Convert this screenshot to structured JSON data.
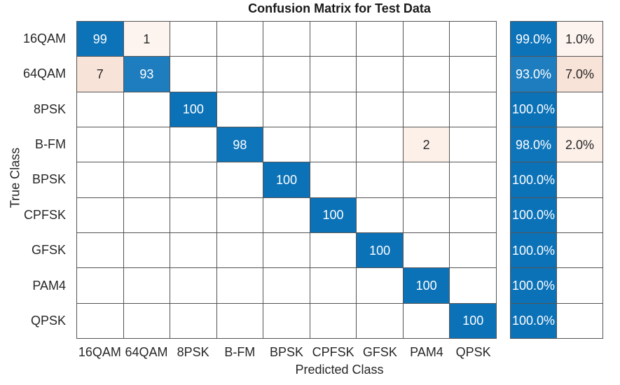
{
  "chart_data": {
    "type": "heatmap",
    "subtype": "confusion-matrix",
    "title": "Confusion Matrix for Test Data",
    "xlabel": "Predicted Class",
    "ylabel": "True Class",
    "classes": [
      "16QAM",
      "64QAM",
      "8PSK",
      "B-FM",
      "BPSK",
      "CPFSK",
      "GFSK",
      "PAM4",
      "QPSK"
    ],
    "matrix": [
      [
        99,
        1,
        0,
        0,
        0,
        0,
        0,
        0,
        0
      ],
      [
        7,
        93,
        0,
        0,
        0,
        0,
        0,
        0,
        0
      ],
      [
        0,
        0,
        100,
        0,
        0,
        0,
        0,
        0,
        0
      ],
      [
        0,
        0,
        0,
        98,
        0,
        0,
        0,
        2,
        0
      ],
      [
        0,
        0,
        0,
        0,
        100,
        0,
        0,
        0,
        0
      ],
      [
        0,
        0,
        0,
        0,
        0,
        100,
        0,
        0,
        0
      ],
      [
        0,
        0,
        0,
        0,
        0,
        0,
        100,
        0,
        0
      ],
      [
        0,
        0,
        0,
        0,
        0,
        0,
        0,
        100,
        0
      ],
      [
        0,
        0,
        0,
        0,
        0,
        0,
        0,
        0,
        100
      ]
    ],
    "row_summary": [
      {
        "correct": "99.0%",
        "incorrect": "1.0%"
      },
      {
        "correct": "93.0%",
        "incorrect": "7.0%"
      },
      {
        "correct": "100.0%",
        "incorrect": ""
      },
      {
        "correct": "98.0%",
        "incorrect": "2.0%"
      },
      {
        "correct": "100.0%",
        "incorrect": ""
      },
      {
        "correct": "100.0%",
        "incorrect": ""
      },
      {
        "correct": "100.0%",
        "incorrect": ""
      },
      {
        "correct": "100.0%",
        "incorrect": ""
      },
      {
        "correct": "100.0%",
        "incorrect": ""
      }
    ],
    "layout": {
      "grid": "on",
      "legend": "none",
      "summary_position": "right"
    },
    "colors": {
      "diagonal_by_value": {
        "100": "#0b72b8",
        "99": "#0d73b9",
        "98": "#0f75ba",
        "93": "#1e7dbf"
      },
      "off_diagonal_by_value": {
        "7": "#f8e3d8",
        "2": "#fcf0e9",
        "1": "#fdf4ef"
      },
      "empty_cell": "#ffffff",
      "grid_line": "#545454",
      "text_dark": "#262626",
      "text_light": "#ffffff"
    }
  }
}
